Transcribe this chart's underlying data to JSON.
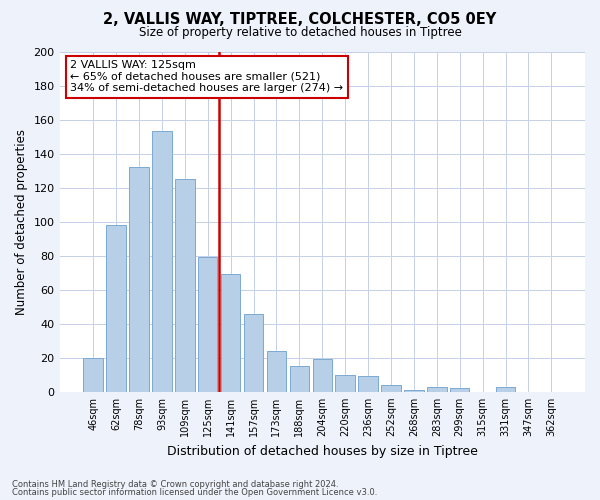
{
  "title": "2, VALLIS WAY, TIPTREE, COLCHESTER, CO5 0EY",
  "subtitle": "Size of property relative to detached houses in Tiptree",
  "xlabel": "Distribution of detached houses by size in Tiptree",
  "ylabel": "Number of detached properties",
  "bar_labels": [
    "46sqm",
    "62sqm",
    "78sqm",
    "93sqm",
    "109sqm",
    "125sqm",
    "141sqm",
    "157sqm",
    "173sqm",
    "188sqm",
    "204sqm",
    "220sqm",
    "236sqm",
    "252sqm",
    "268sqm",
    "283sqm",
    "299sqm",
    "315sqm",
    "331sqm",
    "347sqm",
    "362sqm"
  ],
  "bar_values": [
    20,
    98,
    132,
    153,
    125,
    79,
    69,
    46,
    24,
    15,
    19,
    10,
    9,
    4,
    1,
    3,
    2,
    0,
    3,
    0,
    0
  ],
  "bar_color": "#b8cfe8",
  "bar_edge_color": "#7aaad4",
  "vline_bar_index": 5,
  "vline_color": "#cc0000",
  "annotation_title": "2 VALLIS WAY: 125sqm",
  "annotation_line1": "← 65% of detached houses are smaller (521)",
  "annotation_line2": "34% of semi-detached houses are larger (274) →",
  "annotation_box_facecolor": "#ffffff",
  "annotation_box_edgecolor": "#cc0000",
  "ylim": [
    0,
    200
  ],
  "yticks": [
    0,
    20,
    40,
    60,
    80,
    100,
    120,
    140,
    160,
    180,
    200
  ],
  "footer1": "Contains HM Land Registry data © Crown copyright and database right 2024.",
  "footer2": "Contains public sector information licensed under the Open Government Licence v3.0.",
  "bg_color": "#eef2fb",
  "plot_bg_color": "#ffffff",
  "grid_color": "#c5d0e8"
}
